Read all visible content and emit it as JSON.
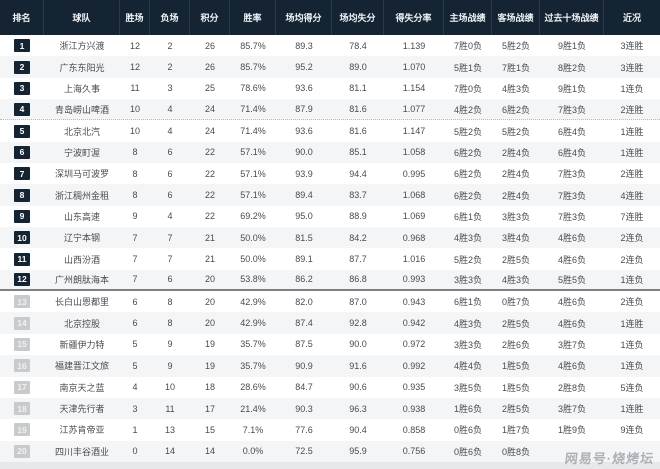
{
  "table": {
    "columns": [
      "排名",
      "球队",
      "胜场",
      "负场",
      "积分",
      "胜率",
      "场均得分",
      "场均失分",
      "得失分率",
      "主场战绩",
      "客场战绩",
      "过去十场战绩",
      "近况"
    ],
    "rows": [
      {
        "rank": "1",
        "team": "浙江方兴渡",
        "wins": "12",
        "losses": "2",
        "points": "26",
        "win_rate": "85.7%",
        "avg_scored": "89.3",
        "avg_allowed": "78.4",
        "ratio": "1.139",
        "home": "7胜0负",
        "away": "5胜2负",
        "last10": "9胜1负",
        "streak": "3连胜",
        "qualified": true,
        "divider_after": ""
      },
      {
        "rank": "2",
        "team": "广东东阳光",
        "wins": "12",
        "losses": "2",
        "points": "26",
        "win_rate": "85.7%",
        "avg_scored": "95.2",
        "avg_allowed": "89.0",
        "ratio": "1.070",
        "home": "5胜1负",
        "away": "7胜1负",
        "last10": "8胜2负",
        "streak": "3连胜",
        "qualified": true,
        "divider_after": ""
      },
      {
        "rank": "3",
        "team": "上海久事",
        "wins": "11",
        "losses": "3",
        "points": "25",
        "win_rate": "78.6%",
        "avg_scored": "93.6",
        "avg_allowed": "81.1",
        "ratio": "1.154",
        "home": "7胜0负",
        "away": "4胜3负",
        "last10": "9胜1负",
        "streak": "1连负",
        "qualified": true,
        "divider_after": ""
      },
      {
        "rank": "4",
        "team": "青岛崂山啤酒",
        "wins": "10",
        "losses": "4",
        "points": "24",
        "win_rate": "71.4%",
        "avg_scored": "87.9",
        "avg_allowed": "81.6",
        "ratio": "1.077",
        "home": "4胜2负",
        "away": "6胜2负",
        "last10": "7胜3负",
        "streak": "2连胜",
        "qualified": true,
        "divider_after": "dotted"
      },
      {
        "rank": "5",
        "team": "北京北汽",
        "wins": "10",
        "losses": "4",
        "points": "24",
        "win_rate": "71.4%",
        "avg_scored": "93.6",
        "avg_allowed": "81.6",
        "ratio": "1.147",
        "home": "5胜2负",
        "away": "5胜2负",
        "last10": "6胜4负",
        "streak": "1连胜",
        "qualified": true,
        "divider_after": ""
      },
      {
        "rank": "6",
        "team": "宁波町渥",
        "wins": "8",
        "losses": "6",
        "points": "22",
        "win_rate": "57.1%",
        "avg_scored": "90.0",
        "avg_allowed": "85.1",
        "ratio": "1.058",
        "home": "6胜2负",
        "away": "2胜4负",
        "last10": "6胜4负",
        "streak": "1连胜",
        "qualified": true,
        "divider_after": ""
      },
      {
        "rank": "7",
        "team": "深圳马可波罗",
        "wins": "8",
        "losses": "6",
        "points": "22",
        "win_rate": "57.1%",
        "avg_scored": "93.9",
        "avg_allowed": "94.4",
        "ratio": "0.995",
        "home": "6胜2负",
        "away": "2胜4负",
        "last10": "7胜3负",
        "streak": "2连胜",
        "qualified": true,
        "divider_after": ""
      },
      {
        "rank": "8",
        "team": "浙江稠州金租",
        "wins": "8",
        "losses": "6",
        "points": "22",
        "win_rate": "57.1%",
        "avg_scored": "89.4",
        "avg_allowed": "83.7",
        "ratio": "1.068",
        "home": "6胜2负",
        "away": "2胜4负",
        "last10": "7胜3负",
        "streak": "4连胜",
        "qualified": true,
        "divider_after": ""
      },
      {
        "rank": "9",
        "team": "山东高速",
        "wins": "9",
        "losses": "4",
        "points": "22",
        "win_rate": "69.2%",
        "avg_scored": "95.0",
        "avg_allowed": "88.9",
        "ratio": "1.069",
        "home": "6胜1负",
        "away": "3胜3负",
        "last10": "7胜3负",
        "streak": "7连胜",
        "qualified": true,
        "divider_after": ""
      },
      {
        "rank": "10",
        "team": "辽宁本钢",
        "wins": "7",
        "losses": "7",
        "points": "21",
        "win_rate": "50.0%",
        "avg_scored": "81.5",
        "avg_allowed": "84.2",
        "ratio": "0.968",
        "home": "4胜3负",
        "away": "3胜4负",
        "last10": "4胜6负",
        "streak": "2连负",
        "qualified": true,
        "divider_after": ""
      },
      {
        "rank": "11",
        "team": "山西汾酒",
        "wins": "7",
        "losses": "7",
        "points": "21",
        "win_rate": "50.0%",
        "avg_scored": "89.1",
        "avg_allowed": "87.7",
        "ratio": "1.016",
        "home": "5胜2负",
        "away": "2胜5负",
        "last10": "4胜6负",
        "streak": "2连负",
        "qualified": true,
        "divider_after": ""
      },
      {
        "rank": "12",
        "team": "广州朗肽海本",
        "wins": "7",
        "losses": "6",
        "points": "20",
        "win_rate": "53.8%",
        "avg_scored": "86.2",
        "avg_allowed": "86.8",
        "ratio": "0.993",
        "home": "3胜3负",
        "away": "4胜3负",
        "last10": "5胜5负",
        "streak": "1连负",
        "qualified": true,
        "divider_after": "solid"
      },
      {
        "rank": "13",
        "team": "长白山恩都里",
        "wins": "6",
        "losses": "8",
        "points": "20",
        "win_rate": "42.9%",
        "avg_scored": "82.0",
        "avg_allowed": "87.0",
        "ratio": "0.943",
        "home": "6胜1负",
        "away": "0胜7负",
        "last10": "4胜6负",
        "streak": "2连负",
        "qualified": false,
        "divider_after": ""
      },
      {
        "rank": "14",
        "team": "北京控股",
        "wins": "6",
        "losses": "8",
        "points": "20",
        "win_rate": "42.9%",
        "avg_scored": "87.4",
        "avg_allowed": "92.8",
        "ratio": "0.942",
        "home": "4胜3负",
        "away": "2胜5负",
        "last10": "4胜6负",
        "streak": "1连胜",
        "qualified": false,
        "divider_after": ""
      },
      {
        "rank": "15",
        "team": "新疆伊力特",
        "wins": "5",
        "losses": "9",
        "points": "19",
        "win_rate": "35.7%",
        "avg_scored": "87.5",
        "avg_allowed": "90.0",
        "ratio": "0.972",
        "home": "3胜3负",
        "away": "2胜6负",
        "last10": "3胜7负",
        "streak": "1连负",
        "qualified": false,
        "divider_after": ""
      },
      {
        "rank": "16",
        "team": "福建晋江文旅",
        "wins": "5",
        "losses": "9",
        "points": "19",
        "win_rate": "35.7%",
        "avg_scored": "90.9",
        "avg_allowed": "91.6",
        "ratio": "0.992",
        "home": "4胜4负",
        "away": "1胜5负",
        "last10": "4胜6负",
        "streak": "1连负",
        "qualified": false,
        "divider_after": ""
      },
      {
        "rank": "17",
        "team": "南京天之蓝",
        "wins": "4",
        "losses": "10",
        "points": "18",
        "win_rate": "28.6%",
        "avg_scored": "84.7",
        "avg_allowed": "90.6",
        "ratio": "0.935",
        "home": "3胜5负",
        "away": "1胜5负",
        "last10": "2胜8负",
        "streak": "5连负",
        "qualified": false,
        "divider_after": ""
      },
      {
        "rank": "18",
        "team": "天津先行者",
        "wins": "3",
        "losses": "11",
        "points": "17",
        "win_rate": "21.4%",
        "avg_scored": "90.3",
        "avg_allowed": "96.3",
        "ratio": "0.938",
        "home": "1胜6负",
        "away": "2胜5负",
        "last10": "3胜7负",
        "streak": "1连胜",
        "qualified": false,
        "divider_after": ""
      },
      {
        "rank": "19",
        "team": "江苏肯帝亚",
        "wins": "1",
        "losses": "13",
        "points": "15",
        "win_rate": "7.1%",
        "avg_scored": "77.6",
        "avg_allowed": "90.4",
        "ratio": "0.858",
        "home": "0胜6负",
        "away": "1胜7负",
        "last10": "1胜9负",
        "streak": "9连负",
        "qualified": false,
        "divider_after": ""
      },
      {
        "rank": "20",
        "team": "四川丰谷酒业",
        "wins": "0",
        "losses": "14",
        "points": "14",
        "win_rate": "0.0%",
        "avg_scored": "72.5",
        "avg_allowed": "95.9",
        "ratio": "0.756",
        "home": "0胜6负",
        "away": "0胜8负",
        "last10": "",
        "streak": "",
        "qualified": false,
        "divider_after": ""
      }
    ]
  },
  "watermark": {
    "text": "网易号·烧烤坛"
  },
  "colors": {
    "header_bg": "#142433",
    "badge_qualified_bg": "#142433",
    "badge_unqualified_bg": "#c9cacc",
    "row_stripe": "#f4f5f6",
    "playoff_divider": "#7d8084",
    "page_bg": "#e7e8e9"
  }
}
